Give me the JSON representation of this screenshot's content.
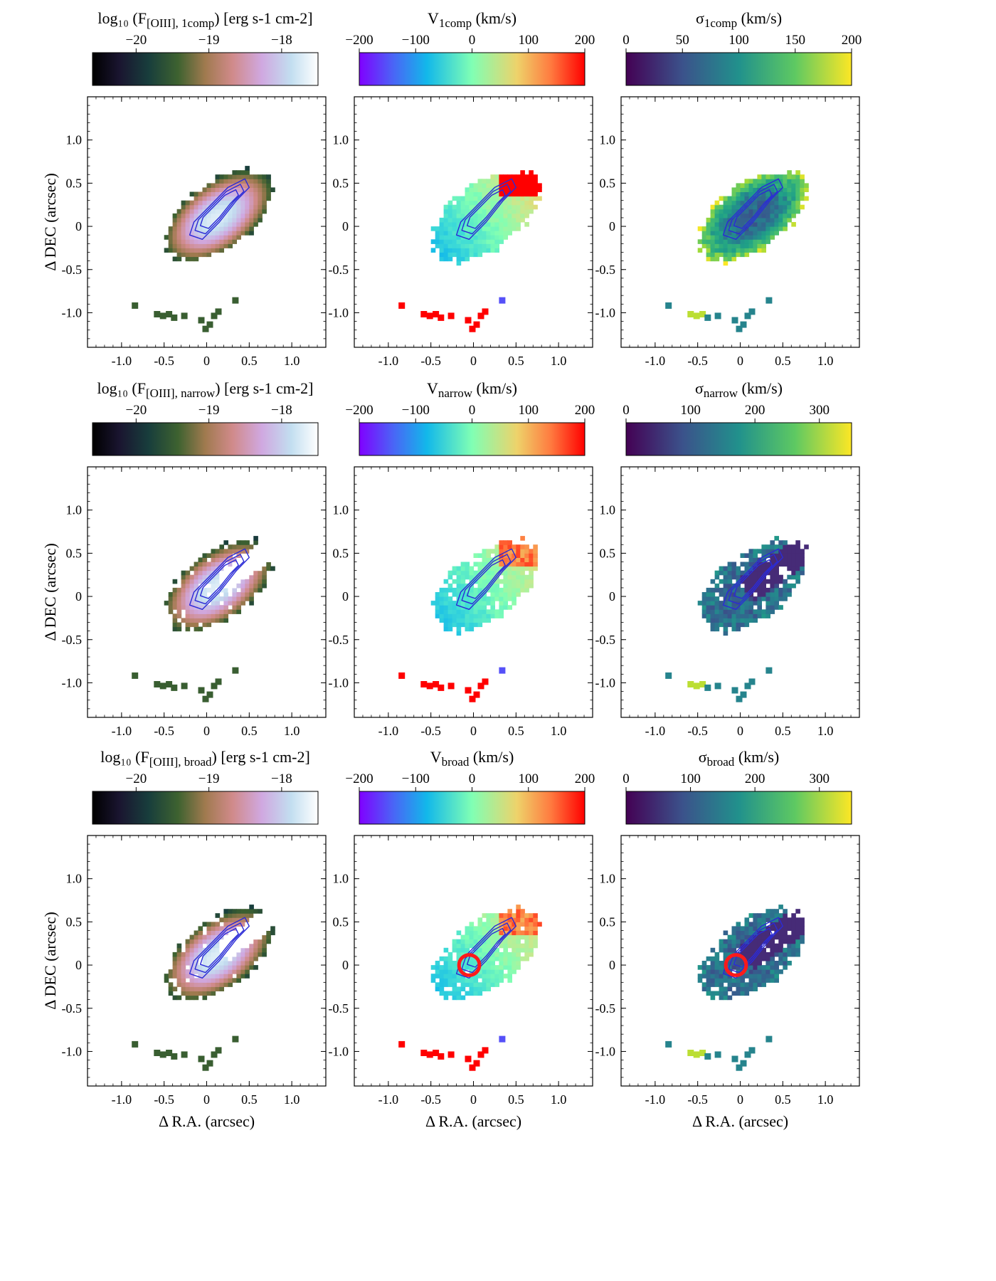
{
  "figure": {
    "x_axis_label": "Δ R.A. (arcsec)",
    "y_axis_label": "Δ DEC (arcsec)"
  },
  "chart_data": {
    "type": "heatmap",
    "description_axes": {
      "xlim": [
        -1.4,
        1.4
      ],
      "ylim": [
        -1.4,
        1.5
      ],
      "x_ticks": [
        -1.0,
        -0.5,
        0,
        0.5,
        1.0
      ],
      "x_tick_labels": [
        "-1.0",
        "-0.5",
        "0",
        "0.5",
        "1.0"
      ],
      "y_ticks": [
        1.0,
        0.5,
        0,
        -0.5,
        -1.0
      ],
      "y_tick_labels": [
        "1.0",
        "0.5",
        "0",
        "-0.5",
        "-1.0"
      ]
    },
    "rows": [
      {
        "name": "1comp",
        "panels": [
          {
            "kind": "flux",
            "cbar_label": {
              "pre": "log₁₀ (F",
              "sub": "[OIII], 1comp",
              "post": ") [erg s-1 cm-2]"
            },
            "cbar_range": [
              -20.6,
              -17.5
            ],
            "cbar_ticks": [
              -20,
              -19,
              -18
            ],
            "cbar_tick_labels": [
              "−20",
              "−19",
              "−18"
            ],
            "colormap": "cubehelix",
            "show_blob": true,
            "show_red_circle": false
          },
          {
            "kind": "velocity",
            "cbar_label": {
              "pre": "V",
              "sub": "1comp",
              "post": " (km/s)"
            },
            "cbar_range": [
              -200,
              200
            ],
            "cbar_ticks": [
              -200,
              -100,
              0,
              100,
              200
            ],
            "cbar_tick_labels": [
              "−200",
              "−100",
              "0",
              "100",
              "200"
            ],
            "colormap": "rainbow",
            "show_blob": true,
            "show_red_circle": false
          },
          {
            "kind": "sigma",
            "cbar_label": {
              "pre": "σ",
              "sub": "1comp",
              "post": " (km/s)"
            },
            "cbar_range": [
              0,
              200
            ],
            "cbar_ticks": [
              0,
              50,
              100,
              150,
              200
            ],
            "cbar_tick_labels": [
              "0",
              "50",
              "100",
              "150",
              "200"
            ],
            "colormap": "viridis",
            "show_blob": true,
            "show_red_circle": false
          }
        ]
      },
      {
        "name": "narrow",
        "panels": [
          {
            "kind": "flux",
            "cbar_label": {
              "pre": "log₁₀ (F",
              "sub": "[OIII], narrow",
              "post": ") [erg s-1 cm-2]"
            },
            "cbar_range": [
              -20.6,
              -17.5
            ],
            "cbar_ticks": [
              -20,
              -19,
              -18
            ],
            "cbar_tick_labels": [
              "−20",
              "−19",
              "−18"
            ],
            "colormap": "cubehelix",
            "show_blob": true,
            "show_red_circle": false
          },
          {
            "kind": "velocity",
            "cbar_label": {
              "pre": "V",
              "sub": "narrow",
              "post": " (km/s)"
            },
            "cbar_range": [
              -200,
              200
            ],
            "cbar_ticks": [
              -200,
              -100,
              0,
              100,
              200
            ],
            "cbar_tick_labels": [
              "−200",
              "−100",
              "0",
              "100",
              "200"
            ],
            "colormap": "rainbow",
            "show_blob": true,
            "show_red_circle": false
          },
          {
            "kind": "sigma",
            "cbar_label": {
              "pre": "σ",
              "sub": "narrow",
              "post": " (km/s)"
            },
            "cbar_range": [
              0,
              350
            ],
            "cbar_ticks": [
              0,
              100,
              200,
              300
            ],
            "cbar_tick_labels": [
              "0",
              "100",
              "200",
              "300"
            ],
            "colormap": "viridis",
            "show_blob": true,
            "show_red_circle": false
          }
        ]
      },
      {
        "name": "broad",
        "panels": [
          {
            "kind": "flux",
            "cbar_label": {
              "pre": "log₁₀ (F",
              "sub": "[OIII], broad",
              "post": ") [erg s-1 cm-2]"
            },
            "cbar_range": [
              -20.6,
              -17.5
            ],
            "cbar_ticks": [
              -20,
              -19,
              -18
            ],
            "cbar_tick_labels": [
              "−20",
              "−19",
              "−18"
            ],
            "colormap": "cubehelix",
            "show_blob": true,
            "show_red_circle": false
          },
          {
            "kind": "velocity",
            "cbar_label": {
              "pre": "V",
              "sub": "broad",
              "post": " (km/s)"
            },
            "cbar_range": [
              -200,
              200
            ],
            "cbar_ticks": [
              -200,
              -100,
              0,
              100,
              200
            ],
            "cbar_tick_labels": [
              "−200",
              "−100",
              "0",
              "100",
              "200"
            ],
            "colormap": "rainbow",
            "show_blob": true,
            "show_red_circle": true
          },
          {
            "kind": "sigma",
            "cbar_label": {
              "pre": "σ",
              "sub": "broad",
              "post": " (km/s)"
            },
            "cbar_range": [
              0,
              350
            ],
            "cbar_ticks": [
              0,
              100,
              200,
              300
            ],
            "cbar_tick_labels": [
              "0",
              "100",
              "200",
              "300"
            ],
            "colormap": "viridis",
            "show_blob": true,
            "show_red_circle": true
          }
        ]
      }
    ],
    "contour": {
      "color": "#2b2bd6",
      "path_data_units": [
        [
          -0.15,
          0.05
        ],
        [
          0.05,
          0.25
        ],
        [
          0.25,
          0.45
        ],
        [
          0.45,
          0.55
        ],
        [
          0.5,
          0.45
        ],
        [
          0.35,
          0.3
        ],
        [
          0.15,
          0.05
        ],
        [
          -0.05,
          -0.15
        ],
        [
          -0.2,
          -0.1
        ]
      ],
      "levels": 3
    },
    "red_circle": {
      "center": [
        -0.05,
        0.0
      ],
      "radius": 0.12,
      "color": "#ff1a1a"
    }
  }
}
